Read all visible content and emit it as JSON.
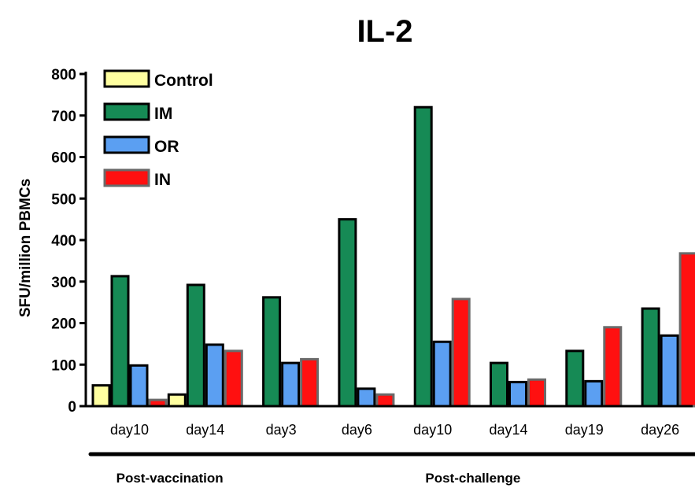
{
  "chart_data": {
    "type": "bar",
    "title": "IL-2",
    "ylabel": "SFU/million PBMCs",
    "xlabel": "",
    "ylim": [
      0,
      800
    ],
    "yticks": [
      0,
      100,
      200,
      300,
      400,
      500,
      600,
      700,
      800
    ],
    "categories": [
      "day10",
      "day14",
      "day3",
      "day6",
      "day10",
      "day14",
      "day19",
      "day26"
    ],
    "series": [
      {
        "name": "Control",
        "color": "#ffffa0",
        "values": [
          50,
          28,
          0,
          0,
          0,
          0,
          0,
          0
        ]
      },
      {
        "name": "IM",
        "color": "#168a55",
        "values": [
          313,
          292,
          262,
          450,
          720,
          104,
          133,
          235
        ]
      },
      {
        "name": "OR",
        "color": "#5b9ff2",
        "values": [
          98,
          148,
          104,
          42,
          155,
          58,
          60,
          170
        ]
      },
      {
        "name": "IN",
        "color": "#ff1010",
        "values": [
          15,
          133,
          113,
          28,
          258,
          64,
          190,
          368
        ]
      }
    ],
    "groups": [
      {
        "label": "Post-vaccination",
        "start": 0,
        "end": 1
      },
      {
        "label": "Post-challenge",
        "start": 2,
        "end": 7
      }
    ],
    "legend_position": "top-left",
    "grid": false
  }
}
